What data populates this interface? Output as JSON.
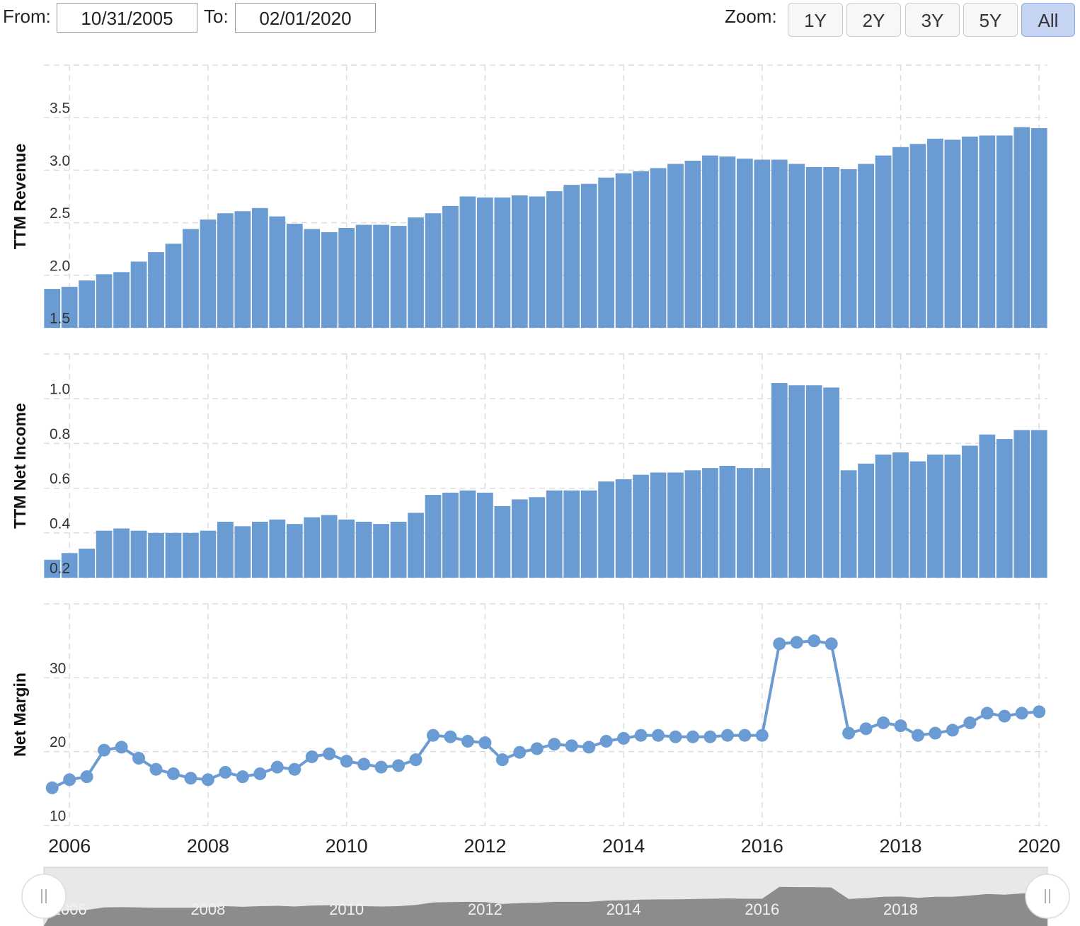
{
  "controls": {
    "from_label": "From:",
    "from": "10/31/2005",
    "to_label": "To:",
    "to": "02/01/2020",
    "zoom_label": "Zoom:",
    "zoom": [
      "1Y",
      "2Y",
      "3Y",
      "5Y",
      "All"
    ]
  },
  "chart_data": [
    {
      "type": "bar",
      "ylabel": "TTM Revenue",
      "color": "#6a9bd2",
      "grid": true,
      "x": [
        2005.75,
        2006,
        2006.25,
        2006.5,
        2006.75,
        2007,
        2007.25,
        2007.5,
        2007.75,
        2008,
        2008.25,
        2008.5,
        2008.75,
        2009,
        2009.25,
        2009.5,
        2009.75,
        2010,
        2010.25,
        2010.5,
        2010.75,
        2011,
        2011.25,
        2011.5,
        2011.75,
        2012,
        2012.25,
        2012.5,
        2012.75,
        2013,
        2013.25,
        2013.5,
        2013.75,
        2014,
        2014.25,
        2014.5,
        2014.75,
        2015,
        2015.25,
        2015.5,
        2015.75,
        2016,
        2016.25,
        2016.5,
        2016.75,
        2017,
        2017.25,
        2017.5,
        2017.75,
        2018,
        2018.25,
        2018.5,
        2018.75,
        2019,
        2019.25,
        2019.5,
        2019.75,
        2020
      ],
      "values": [
        1.87,
        1.89,
        1.95,
        2.01,
        2.03,
        2.13,
        2.22,
        2.3,
        2.44,
        2.53,
        2.59,
        2.61,
        2.64,
        2.56,
        2.49,
        2.44,
        2.41,
        2.45,
        2.48,
        2.48,
        2.47,
        2.55,
        2.59,
        2.66,
        2.75,
        2.74,
        2.74,
        2.76,
        2.75,
        2.8,
        2.86,
        2.87,
        2.93,
        2.97,
        2.99,
        3.02,
        3.06,
        3.09,
        3.14,
        3.13,
        3.11,
        3.1,
        3.1,
        3.06,
        3.03,
        3.03,
        3.01,
        3.06,
        3.14,
        3.22,
        3.25,
        3.3,
        3.29,
        3.32,
        3.33,
        3.33,
        3.41,
        3.4
      ],
      "xlim": [
        2005.63,
        2020.12
      ],
      "xticks": [
        2006,
        2008,
        2010,
        2012,
        2014,
        2016,
        2018,
        2020
      ],
      "ylim": [
        1.5,
        4.0
      ],
      "yticks": [
        1.5,
        {
          "value": 2,
          "label": "2.0"
        },
        2.5,
        {
          "value": 3,
          "label": "3.0"
        },
        3.5
      ]
    },
    {
      "type": "bar",
      "ylabel": "TTM Net Income",
      "color": "#6a9bd2",
      "grid": true,
      "x": [
        2005.75,
        2006,
        2006.25,
        2006.5,
        2006.75,
        2007,
        2007.25,
        2007.5,
        2007.75,
        2008,
        2008.25,
        2008.5,
        2008.75,
        2009,
        2009.25,
        2009.5,
        2009.75,
        2010,
        2010.25,
        2010.5,
        2010.75,
        2011,
        2011.25,
        2011.5,
        2011.75,
        2012,
        2012.25,
        2012.5,
        2012.75,
        2013,
        2013.25,
        2013.5,
        2013.75,
        2014,
        2014.25,
        2014.5,
        2014.75,
        2015,
        2015.25,
        2015.5,
        2015.75,
        2016,
        2016.25,
        2016.5,
        2016.75,
        2017,
        2017.25,
        2017.5,
        2017.75,
        2018,
        2018.25,
        2018.5,
        2018.75,
        2019,
        2019.25,
        2019.5,
        2019.75,
        2020
      ],
      "values": [
        0.28,
        0.31,
        0.33,
        0.41,
        0.42,
        0.41,
        0.4,
        0.4,
        0.4,
        0.41,
        0.45,
        0.43,
        0.45,
        0.46,
        0.44,
        0.47,
        0.48,
        0.46,
        0.45,
        0.44,
        0.45,
        0.49,
        0.57,
        0.58,
        0.59,
        0.58,
        0.52,
        0.55,
        0.56,
        0.59,
        0.59,
        0.59,
        0.63,
        0.64,
        0.66,
        0.67,
        0.67,
        0.68,
        0.69,
        0.7,
        0.69,
        0.69,
        1.07,
        1.06,
        1.06,
        1.05,
        0.68,
        0.71,
        0.75,
        0.76,
        0.72,
        0.75,
        0.75,
        0.79,
        0.84,
        0.82,
        0.86,
        0.86
      ],
      "xlim": [
        2005.63,
        2020.12
      ],
      "xticks": [
        2006,
        2008,
        2010,
        2012,
        2014,
        2016,
        2018,
        2020
      ],
      "ylim": [
        0.2,
        1.2
      ],
      "yticks": [
        0.2,
        0.4,
        0.6,
        0.8,
        {
          "value": 1,
          "label": "1.0"
        }
      ]
    },
    {
      "type": "line",
      "ylabel": "Net Margin",
      "color": "#6a9bd2",
      "grid": true,
      "x": [
        2005.75,
        2006,
        2006.25,
        2006.5,
        2006.75,
        2007,
        2007.25,
        2007.5,
        2007.75,
        2008,
        2008.25,
        2008.5,
        2008.75,
        2009,
        2009.25,
        2009.5,
        2009.75,
        2010,
        2010.25,
        2010.5,
        2010.75,
        2011,
        2011.25,
        2011.5,
        2011.75,
        2012,
        2012.25,
        2012.5,
        2012.75,
        2013,
        2013.25,
        2013.5,
        2013.75,
        2014,
        2014.25,
        2014.5,
        2014.75,
        2015,
        2015.25,
        2015.5,
        2015.75,
        2016,
        2016.25,
        2016.5,
        2016.75,
        2017,
        2017.25,
        2017.5,
        2017.75,
        2018,
        2018.25,
        2018.5,
        2018.75,
        2019,
        2019.25,
        2019.5,
        2019.75,
        2020
      ],
      "values": [
        15.1,
        16.2,
        16.6,
        20.2,
        20.6,
        19.1,
        17.6,
        17.0,
        16.4,
        16.2,
        17.2,
        16.6,
        17.0,
        17.9,
        17.6,
        19.3,
        19.7,
        18.7,
        18.3,
        17.9,
        18.1,
        18.9,
        22.2,
        22.0,
        21.4,
        21.2,
        18.9,
        19.9,
        20.4,
        21.0,
        20.8,
        20.6,
        21.4,
        21.8,
        22.2,
        22.2,
        22.0,
        22.0,
        22.0,
        22.2,
        22.2,
        22.2,
        34.6,
        34.8,
        35.0,
        34.6,
        22.5,
        23.1,
        23.9,
        23.5,
        22.2,
        22.5,
        22.9,
        23.9,
        25.2,
        24.8,
        25.2,
        25.4
      ],
      "xlim": [
        2005.63,
        2020.12
      ],
      "xticks": [
        2006,
        2008,
        2010,
        2012,
        2014,
        2016,
        2018,
        2020
      ],
      "ylim": [
        10,
        40
      ],
      "yticks": [
        10,
        20,
        30
      ]
    }
  ]
}
